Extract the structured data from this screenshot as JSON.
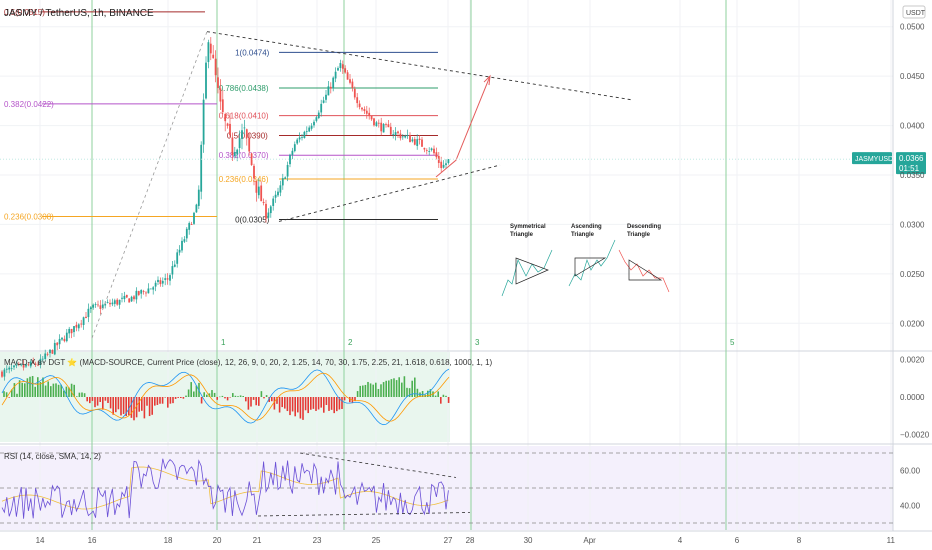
{
  "header": {
    "title": "JASMY / TetherUS, 1h, BINANCE",
    "currency": "USDT"
  },
  "colors": {
    "up": "#26a69a",
    "down": "#ef5350",
    "vline": "#8fd19e",
    "fib_0": "#2b2b2b",
    "fib_0236": "#f5a623",
    "fib_0382": "#b554c9",
    "fib_05": "#a52a2a",
    "fib_0618": "#e0525a",
    "fib_0786": "#2e9c6b",
    "fib_1": "#2f4f8f",
    "rsi": "#6a4fd6",
    "rsi_ma": "#f0c040",
    "macd": "#2196f3",
    "signal": "#ff9800",
    "price_tag": "#26a69a"
  },
  "chart_data": [
    {
      "type": "candlestick",
      "title": "JASMY / TetherUS, 1h, BINANCE",
      "y_ticks": [
        "0.0500",
        "0.0450",
        "0.0400",
        "0.0350",
        "0.0300",
        "0.0250",
        "0.0200"
      ],
      "x_ticks": [
        "14",
        "16",
        "18",
        "20",
        "21",
        "23",
        "25",
        "27",
        "28",
        "30",
        "Apr",
        "4",
        "6",
        "8",
        "11"
      ],
      "ylim": [
        0.0173,
        0.0527
      ],
      "x_dates": [
        "2022-03-14",
        "2022-04-11"
      ],
      "last_price": "0.0366",
      "countdown": "01:51",
      "symbol": "JASMYUSDT",
      "cycle_labels": [
        "1",
        "2",
        "3",
        "5"
      ],
      "fib_left": [
        {
          "label": "0.5(0.0515)",
          "value": 0.0515
        },
        {
          "label": "0.382(0.0422)",
          "value": 0.0422
        },
        {
          "label": "0.236(0.0308)",
          "value": 0.0308
        }
      ],
      "fib_right": [
        {
          "label": "1(0.0474)",
          "value": 0.0474
        },
        {
          "label": "0.786(0.0438)",
          "value": 0.0438
        },
        {
          "label": "0.618(0.0410)",
          "value": 0.041
        },
        {
          "label": "0.5(0.0390)",
          "value": 0.039
        },
        {
          "label": "0.382(0.0370)",
          "value": 0.037
        },
        {
          "label": "0.236(0.0346)",
          "value": 0.0346
        },
        {
          "label": "0(0.0305)",
          "value": 0.0305
        }
      ],
      "patterns": [
        {
          "name": "Symmetrical Triangle",
          "l1": "Symmetrical",
          "l2": "Triangle"
        },
        {
          "name": "Ascending Triangle",
          "l1": "Ascending",
          "l2": "Triangle"
        },
        {
          "name": "Descending Triangle",
          "l1": "Descending",
          "l2": "Triangle"
        }
      ],
      "grid": true
    },
    {
      "type": "line",
      "title": "MACD-X ʙʏ DGT ⭐ (MACD-SOURCE, Current Price (close), 12, 26, 9, 0, 20, 2, 1.25, 14, 70, 30, 1.75, 2.25, 21, 1.618, 0.618, 1000, 1, 1)",
      "y_ticks": [
        "0.0020",
        "0.0000",
        "−0.0020"
      ],
      "ylim": [
        -0.0024,
        0.0024
      ]
    },
    {
      "type": "line",
      "title": "RSI (14, close, SMA, 14, 2)",
      "y_ticks": [
        "60.00",
        "40.00"
      ],
      "levels": [
        70,
        50,
        30
      ],
      "ylim": [
        26,
        74
      ]
    }
  ]
}
